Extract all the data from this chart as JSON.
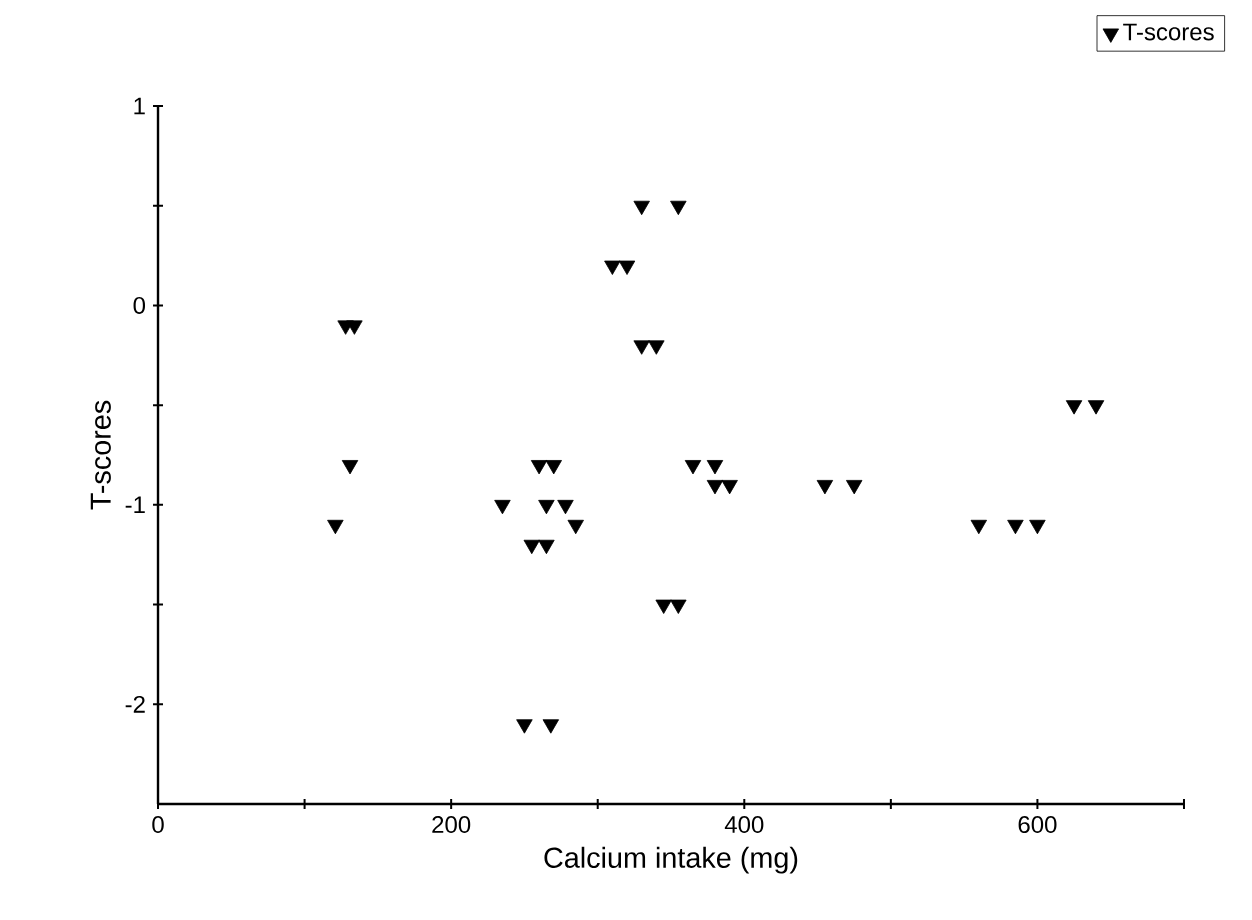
{
  "chart_data": {
    "type": "scatter",
    "xlabel": "Calcium intake (mg)",
    "ylabel": "T-scores",
    "xlim": [
      0,
      700
    ],
    "ylim": [
      -2.5,
      1
    ],
    "xticks": [
      0,
      {
        "value": 100,
        "label": null
      },
      200,
      {
        "value": 300,
        "label": null
      },
      400,
      {
        "value": 500,
        "label": null
      },
      600,
      {
        "value": 700,
        "label": null
      }
    ],
    "yticks": [
      -2,
      {
        "value": -1.5,
        "label": null
      },
      -1,
      {
        "value": -0.5,
        "label": null
      },
      0,
      {
        "value": 0.5,
        "label": null
      },
      1
    ],
    "legend": "top right",
    "marker": "triangle",
    "grid": false,
    "series": [
      {
        "name": "T-scores",
        "color": "#000000",
        "x": [
          121,
          131,
          128,
          134,
          235,
          260,
          270,
          265,
          278,
          285,
          255,
          265,
          250,
          268,
          310,
          320,
          330,
          355,
          330,
          340,
          345,
          355,
          365,
          380,
          380,
          390,
          455,
          475,
          560,
          585,
          600,
          625,
          640
        ],
        "values": [
          -1.1,
          -0.8,
          -0.1,
          -0.1,
          -1.0,
          -0.8,
          -0.8,
          -1.0,
          -1.0,
          -1.1,
          -1.2,
          -1.2,
          -2.1,
          -2.1,
          0.2,
          0.2,
          0.5,
          0.5,
          -0.2,
          -0.2,
          -1.5,
          -1.5,
          -0.8,
          -0.8,
          -0.9,
          -0.9,
          -0.9,
          -0.9,
          -1.1,
          -1.1,
          -1.1,
          -0.5,
          -0.5
        ]
      }
    ]
  }
}
